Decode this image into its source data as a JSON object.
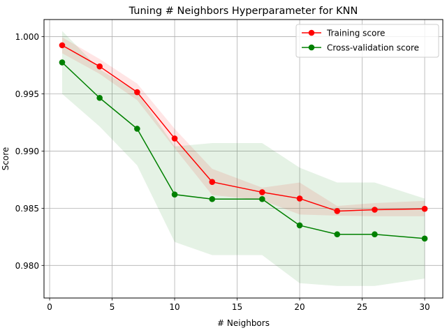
{
  "chart_data": {
    "type": "line",
    "title": "Tuning # Neighbors Hyperparameter for KNN",
    "xlabel": "# Neighbors",
    "ylabel": "Score",
    "xlim": [
      -0.45,
      31.45
    ],
    "ylim": [
      0.97715,
      1.0015
    ],
    "xticks": [
      0,
      5,
      10,
      15,
      20,
      25,
      30
    ],
    "yticks": [
      0.98,
      0.985,
      0.99,
      0.995,
      1.0
    ],
    "ytick_labels": [
      "0.980",
      "0.985",
      "0.990",
      "0.995",
      "1.000"
    ],
    "grid": true,
    "legend_position": "upper right",
    "x": [
      1,
      4,
      7,
      10,
      13,
      17,
      20,
      23,
      26,
      30
    ],
    "series": [
      {
        "name": "Training score",
        "color": "#ff0000",
        "marker": "circle",
        "values": [
          0.99925,
          0.9974,
          0.99515,
          0.9911,
          0.9873,
          0.9864,
          0.98585,
          0.98475,
          0.98487,
          0.98495
        ],
        "band_lower": [
          0.99855,
          0.99675,
          0.99445,
          0.99025,
          0.98615,
          0.9857,
          0.98445,
          0.98435,
          0.9843,
          0.9843
        ],
        "band_upper": [
          0.99995,
          0.99805,
          0.9959,
          0.99195,
          0.98845,
          0.9868,
          0.98725,
          0.9852,
          0.98545,
          0.98565
        ],
        "band_color": "#ff0000",
        "band_opacity": 0.1
      },
      {
        "name": "Cross-validation score",
        "color": "#008000",
        "marker": "circle",
        "values": [
          0.99775,
          0.99465,
          0.99195,
          0.9862,
          0.9858,
          0.9858,
          0.9835,
          0.98272,
          0.98272,
          0.98235
        ],
        "band_lower": [
          0.995,
          0.99215,
          0.98875,
          0.98205,
          0.9809,
          0.9809,
          0.97845,
          0.9782,
          0.9782,
          0.97885
        ],
        "band_upper": [
          1.0005,
          0.99715,
          0.99515,
          0.9904,
          0.9907,
          0.9907,
          0.98855,
          0.98725,
          0.98725,
          0.98585
        ],
        "band_color": "#008000",
        "band_opacity": 0.1
      }
    ]
  }
}
